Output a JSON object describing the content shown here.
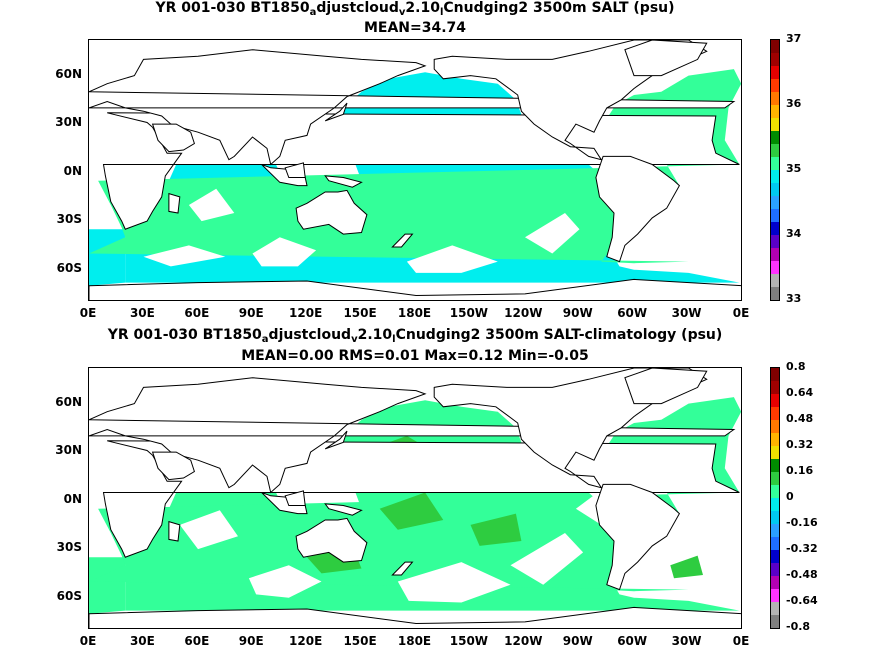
{
  "chart_data": [
    {
      "type": "heatmap",
      "title_parts": [
        "YR 001-030 BT1850",
        "a",
        "djustcloud",
        "v",
        "2.10",
        "l",
        "Cnudging2 3500m SALT (psu)"
      ],
      "subtitle": "MEAN=34.74",
      "x_ticks": [
        "0E",
        "30E",
        "60E",
        "90E",
        "120E",
        "150E",
        "180E",
        "150W",
        "120W",
        "90W",
        "60W",
        "30W",
        "0E"
      ],
      "y_ticks": [
        "60N",
        "30N",
        "0N",
        "30S",
        "60S"
      ],
      "colorbar_labels": [
        "37",
        "36",
        "35",
        "34",
        "33"
      ],
      "colorbar_colors": [
        "#7f7f7f",
        "#b3b3b3",
        "#ff33ff",
        "#b300b3",
        "#5a00c8",
        "#0000cc",
        "#1e6eff",
        "#2aa0ff",
        "#00c8f0",
        "#00ebeb",
        "#33ff99",
        "#2ecc40",
        "#008c00",
        "#f0e000",
        "#ffb400",
        "#ff7800",
        "#ff3a00",
        "#e60000",
        "#a00000",
        "#800000"
      ],
      "dominant_values": {
        "pacific_indian": 34.7,
        "atlantic": 34.9
      },
      "mean": 34.74
    },
    {
      "type": "heatmap",
      "title_parts": [
        "YR 001-030 BT1850",
        "a",
        "djustcloud",
        "v",
        "2.10",
        "l",
        "Cnudging2 3500m SALT-climatology (psu)"
      ],
      "subtitle": "MEAN=0.00   RMS=0.01   Max=0.12   Min=-0.05",
      "x_ticks": [
        "0E",
        "30E",
        "60E",
        "90E",
        "120E",
        "150E",
        "180E",
        "150W",
        "120W",
        "90W",
        "60W",
        "30W",
        "0E"
      ],
      "y_ticks": [
        "60N",
        "30N",
        "0N",
        "30S",
        "60S"
      ],
      "colorbar_labels": [
        "0.8",
        "0.64",
        "0.48",
        "0.32",
        "0.16",
        "0",
        "-0.16",
        "-0.32",
        "-0.48",
        "-0.64",
        "-0.8"
      ],
      "colorbar_colors": [
        "#7f7f7f",
        "#b3b3b3",
        "#ff33ff",
        "#b300b3",
        "#5a00c8",
        "#0000cc",
        "#1e6eff",
        "#2aa0ff",
        "#00c8f0",
        "#00ebeb",
        "#33ff99",
        "#2ecc40",
        "#008c00",
        "#f0e000",
        "#ffb400",
        "#ff7800",
        "#ff3a00",
        "#e60000",
        "#a00000",
        "#800000"
      ],
      "mean": 0.0,
      "rms": 0.01,
      "max": 0.12,
      "min": -0.05
    }
  ],
  "colors": {
    "ocean_fill_top": "#00eeee",
    "atlantic_fill_top": "#33ff99",
    "ocean_fill_bottom_light": "#33ff99",
    "ocean_fill_bottom_mid": "#2ecc40",
    "land": "#ffffff",
    "coast": "#000000"
  }
}
